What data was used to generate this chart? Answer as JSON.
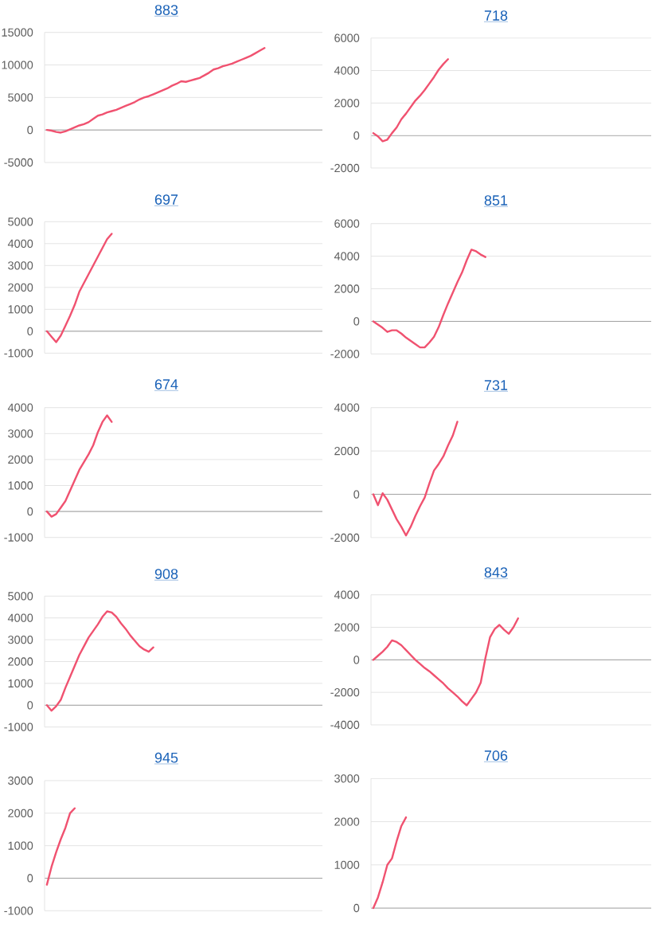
{
  "chart_data": [
    {
      "type": "line",
      "title": "883",
      "categories": [
        null,
        null,
        null,
        null,
        null,
        null,
        null,
        null,
        null,
        null,
        null,
        null,
        null,
        null,
        null,
        null,
        null,
        null,
        null,
        null,
        null,
        null,
        null,
        null,
        null,
        null,
        null,
        null,
        null,
        null,
        null,
        null,
        null,
        null,
        null,
        null,
        null,
        null,
        null,
        null,
        null,
        null,
        null,
        null,
        null,
        null,
        null,
        null,
        null,
        null,
        null,
        null,
        null,
        null,
        null,
        null,
        null,
        null,
        null,
        null
      ],
      "values": [
        0,
        -100,
        -300,
        -400,
        -200,
        100,
        400,
        700,
        900,
        1200,
        1700,
        2200,
        2400,
        2700,
        2900,
        3100,
        3400,
        3700,
        4000,
        4300,
        4700,
        5000,
        5200,
        5500,
        5800,
        6100,
        6400,
        6800,
        7100,
        7500,
        7400,
        7600,
        7800,
        8000,
        8400,
        8800,
        9300,
        9500,
        9800,
        10000,
        10200,
        10500,
        10800,
        11100,
        11400,
        11800,
        12200,
        12600,
        null,
        null,
        null,
        null,
        null,
        null,
        null,
        null,
        null,
        null,
        null,
        null
      ],
      "color": "#f05270",
      "ylim": [
        -5000,
        15000
      ],
      "yticks": [
        -5000,
        0,
        5000,
        10000,
        15000
      ],
      "grid": "y",
      "tick_labels": "y"
    },
    {
      "type": "line",
      "title": "718",
      "categories": [
        null,
        null,
        null,
        null,
        null,
        null,
        null,
        null,
        null,
        null,
        null,
        null,
        null,
        null,
        null,
        null,
        null,
        null,
        null,
        null,
        null,
        null,
        null,
        null,
        null,
        null,
        null,
        null,
        null,
        null,
        null,
        null,
        null,
        null,
        null,
        null,
        null,
        null,
        null,
        null,
        null,
        null,
        null,
        null,
        null,
        null,
        null,
        null,
        null,
        null,
        null,
        null,
        null,
        null,
        null,
        null,
        null,
        null,
        null,
        null
      ],
      "values": [
        150,
        -50,
        -350,
        -250,
        150,
        500,
        1000,
        1350,
        1750,
        2150,
        2450,
        2800,
        3200,
        3600,
        4050,
        4400,
        4700,
        null,
        null,
        null,
        null,
        null,
        null,
        null,
        null,
        null,
        null,
        null,
        null,
        null,
        null,
        null,
        null,
        null,
        null,
        null,
        null,
        null,
        null,
        null,
        null,
        null,
        null,
        null,
        null,
        null,
        null,
        null,
        null,
        null,
        null,
        null,
        null,
        null,
        null,
        null,
        null,
        null,
        null,
        null
      ],
      "color": "#f05270",
      "ylim": [
        -2000,
        6000
      ],
      "yticks": [
        -2000,
        0,
        2000,
        4000,
        6000
      ],
      "grid": "y",
      "tick_labels": "y"
    },
    {
      "type": "line",
      "title": "697",
      "categories": [
        null,
        null,
        null,
        null,
        null,
        null,
        null,
        null,
        null,
        null,
        null,
        null,
        null,
        null,
        null,
        null,
        null,
        null,
        null,
        null,
        null,
        null,
        null,
        null,
        null,
        null,
        null,
        null,
        null,
        null,
        null,
        null,
        null,
        null,
        null,
        null,
        null,
        null,
        null,
        null,
        null,
        null,
        null,
        null,
        null,
        null,
        null,
        null,
        null,
        null,
        null,
        null,
        null,
        null,
        null,
        null,
        null,
        null,
        null,
        null
      ],
      "values": [
        0,
        -250,
        -500,
        -200,
        250,
        700,
        1200,
        1800,
        2200,
        2600,
        3000,
        3400,
        3800,
        4200,
        4450,
        null,
        null,
        null,
        null,
        null,
        null,
        null,
        null,
        null,
        null,
        null,
        null,
        null,
        null,
        null,
        null,
        null,
        null,
        null,
        null,
        null,
        null,
        null,
        null,
        null,
        null,
        null,
        null,
        null,
        null,
        null,
        null,
        null,
        null,
        null,
        null,
        null,
        null,
        null,
        null,
        null,
        null,
        null,
        null,
        null
      ],
      "color": "#f05270",
      "ylim": [
        -1000,
        5000
      ],
      "yticks": [
        -1000,
        0,
        1000,
        2000,
        3000,
        4000,
        5000
      ],
      "grid": "y",
      "tick_labels": "y"
    },
    {
      "type": "line",
      "title": "851",
      "categories": [
        null,
        null,
        null,
        null,
        null,
        null,
        null,
        null,
        null,
        null,
        null,
        null,
        null,
        null,
        null,
        null,
        null,
        null,
        null,
        null,
        null,
        null,
        null,
        null,
        null,
        null,
        null,
        null,
        null,
        null,
        null,
        null,
        null,
        null,
        null,
        null,
        null,
        null,
        null,
        null,
        null,
        null,
        null,
        null,
        null,
        null,
        null,
        null,
        null,
        null,
        null,
        null,
        null,
        null,
        null,
        null,
        null,
        null,
        null,
        null
      ],
      "values": [
        0,
        -200,
        -400,
        -650,
        -550,
        -550,
        -750,
        -1000,
        -1200,
        -1400,
        -1600,
        -1600,
        -1300,
        -950,
        -350,
        400,
        1100,
        1750,
        2400,
        3000,
        3750,
        4400,
        4300,
        4100,
        3950,
        null,
        null,
        null,
        null,
        null,
        null,
        null,
        null,
        null,
        null,
        null,
        null,
        null,
        null,
        null,
        null,
        null,
        null,
        null,
        null,
        null,
        null,
        null,
        null,
        null,
        null,
        null,
        null,
        null,
        null,
        null,
        null,
        null,
        null,
        null
      ],
      "color": "#f05270",
      "ylim": [
        -2000,
        6000
      ],
      "yticks": [
        -2000,
        0,
        2000,
        4000,
        6000
      ],
      "grid": "y",
      "tick_labels": "y"
    },
    {
      "type": "line",
      "title": "674",
      "categories": [
        null,
        null,
        null,
        null,
        null,
        null,
        null,
        null,
        null,
        null,
        null,
        null,
        null,
        null,
        null,
        null,
        null,
        null,
        null,
        null,
        null,
        null,
        null,
        null,
        null,
        null,
        null,
        null,
        null,
        null,
        null,
        null,
        null,
        null,
        null,
        null,
        null,
        null,
        null,
        null,
        null,
        null,
        null,
        null,
        null,
        null,
        null,
        null,
        null,
        null,
        null,
        null,
        null,
        null,
        null,
        null,
        null,
        null,
        null,
        null
      ],
      "values": [
        0,
        -200,
        -100,
        150,
        400,
        800,
        1200,
        1600,
        1900,
        2200,
        2550,
        3050,
        3450,
        3700,
        3450,
        null,
        null,
        null,
        null,
        null,
        null,
        null,
        null,
        null,
        null,
        null,
        null,
        null,
        null,
        null,
        null,
        null,
        null,
        null,
        null,
        null,
        null,
        null,
        null,
        null,
        null,
        null,
        null,
        null,
        null,
        null,
        null,
        null,
        null,
        null,
        null,
        null,
        null,
        null,
        null,
        null,
        null,
        null,
        null,
        null
      ],
      "color": "#f05270",
      "ylim": [
        -1000,
        4000
      ],
      "yticks": [
        -1000,
        0,
        1000,
        2000,
        3000,
        4000
      ],
      "grid": "y",
      "tick_labels": "y"
    },
    {
      "type": "line",
      "title": "731",
      "categories": [
        null,
        null,
        null,
        null,
        null,
        null,
        null,
        null,
        null,
        null,
        null,
        null,
        null,
        null,
        null,
        null,
        null,
        null,
        null,
        null,
        null,
        null,
        null,
        null,
        null,
        null,
        null,
        null,
        null,
        null,
        null,
        null,
        null,
        null,
        null,
        null,
        null,
        null,
        null,
        null,
        null,
        null,
        null,
        null,
        null,
        null,
        null,
        null,
        null,
        null,
        null,
        null,
        null,
        null,
        null,
        null,
        null,
        null,
        null,
        null
      ],
      "values": [
        0,
        -500,
        50,
        -250,
        -700,
        -1150,
        -1500,
        -1900,
        -1500,
        -1000,
        -550,
        -150,
        500,
        1100,
        1400,
        1750,
        2250,
        2700,
        3350,
        null,
        null,
        null,
        null,
        null,
        null,
        null,
        null,
        null,
        null,
        null,
        null,
        null,
        null,
        null,
        null,
        null,
        null,
        null,
        null,
        null,
        null,
        null,
        null,
        null,
        null,
        null,
        null,
        null,
        null,
        null,
        null,
        null,
        null,
        null,
        null,
        null,
        null,
        null,
        null,
        null
      ],
      "color": "#f05270",
      "ylim": [
        -2000,
        4000
      ],
      "yticks": [
        -2000,
        0,
        2000,
        4000
      ],
      "grid": "y",
      "tick_labels": "y"
    },
    {
      "type": "line",
      "title": "908",
      "categories": [
        null,
        null,
        null,
        null,
        null,
        null,
        null,
        null,
        null,
        null,
        null,
        null,
        null,
        null,
        null,
        null,
        null,
        null,
        null,
        null,
        null,
        null,
        null,
        null,
        null,
        null,
        null,
        null,
        null,
        null,
        null,
        null,
        null,
        null,
        null,
        null,
        null,
        null,
        null,
        null,
        null,
        null,
        null,
        null,
        null,
        null,
        null,
        null,
        null,
        null,
        null,
        null,
        null,
        null,
        null,
        null,
        null,
        null,
        null,
        null
      ],
      "values": [
        0,
        -250,
        -50,
        250,
        800,
        1300,
        1800,
        2300,
        2700,
        3100,
        3400,
        3700,
        4050,
        4300,
        4250,
        4050,
        3750,
        3500,
        3200,
        2950,
        2700,
        2550,
        2450,
        2650,
        null,
        null,
        null,
        null,
        null,
        null,
        null,
        null,
        null,
        null,
        null,
        null,
        null,
        null,
        null,
        null,
        null,
        null,
        null,
        null,
        null,
        null,
        null,
        null,
        null,
        null,
        null,
        null,
        null,
        null,
        null,
        null,
        null,
        null,
        null,
        null
      ],
      "color": "#f05270",
      "ylim": [
        -1000,
        5000
      ],
      "yticks": [
        -1000,
        0,
        1000,
        2000,
        3000,
        4000,
        5000
      ],
      "grid": "y",
      "tick_labels": "y"
    },
    {
      "type": "line",
      "title": "843",
      "categories": [
        null,
        null,
        null,
        null,
        null,
        null,
        null,
        null,
        null,
        null,
        null,
        null,
        null,
        null,
        null,
        null,
        null,
        null,
        null,
        null,
        null,
        null,
        null,
        null,
        null,
        null,
        null,
        null,
        null,
        null,
        null,
        null,
        null,
        null,
        null,
        null,
        null,
        null,
        null,
        null,
        null,
        null,
        null,
        null,
        null,
        null,
        null,
        null,
        null,
        null,
        null,
        null,
        null,
        null,
        null,
        null,
        null,
        null,
        null,
        null
      ],
      "values": [
        0,
        250,
        500,
        800,
        1200,
        1100,
        900,
        600,
        300,
        0,
        -250,
        -500,
        -700,
        -950,
        -1200,
        -1450,
        -1750,
        -2000,
        -2250,
        -2550,
        -2800,
        -2400,
        -2000,
        -1400,
        100,
        1400,
        1900,
        2150,
        1850,
        1600,
        2000,
        2550,
        null,
        null,
        null,
        null,
        null,
        null,
        null,
        null,
        null,
        null,
        null,
        null,
        null,
        null,
        null,
        null,
        null,
        null,
        null,
        null,
        null,
        null,
        null,
        null,
        null,
        null,
        null,
        null
      ],
      "color": "#f05270",
      "ylim": [
        -4000,
        4000
      ],
      "yticks": [
        -4000,
        -2000,
        0,
        2000,
        4000
      ],
      "grid": "y",
      "tick_labels": "y"
    },
    {
      "type": "line",
      "title": "945",
      "categories": [
        null,
        null,
        null,
        null,
        null,
        null,
        null,
        null,
        null,
        null,
        null,
        null,
        null,
        null,
        null,
        null,
        null,
        null,
        null,
        null,
        null,
        null,
        null,
        null,
        null,
        null,
        null,
        null,
        null,
        null,
        null,
        null,
        null,
        null,
        null,
        null,
        null,
        null,
        null,
        null,
        null,
        null,
        null,
        null,
        null,
        null,
        null,
        null,
        null,
        null,
        null,
        null,
        null,
        null,
        null,
        null,
        null,
        null,
        null,
        null
      ],
      "values": [
        -200,
        350,
        800,
        1200,
        1550,
        2000,
        2150,
        null,
        null,
        null,
        null,
        null,
        null,
        null,
        null,
        null,
        null,
        null,
        null,
        null,
        null,
        null,
        null,
        null,
        null,
        null,
        null,
        null,
        null,
        null,
        null,
        null,
        null,
        null,
        null,
        null,
        null,
        null,
        null,
        null,
        null,
        null,
        null,
        null,
        null,
        null,
        null,
        null,
        null,
        null,
        null,
        null,
        null,
        null,
        null,
        null,
        null,
        null,
        null,
        null
      ],
      "color": "#f05270",
      "ylim": [
        -1000,
        3000
      ],
      "yticks": [
        -1000,
        0,
        1000,
        2000,
        3000
      ],
      "grid": "y",
      "tick_labels": "y"
    },
    {
      "type": "line",
      "title": "706",
      "categories": [
        null,
        null,
        null,
        null,
        null,
        null,
        null,
        null,
        null,
        null,
        null,
        null,
        null,
        null,
        null,
        null,
        null,
        null,
        null,
        null,
        null,
        null,
        null,
        null,
        null,
        null,
        null,
        null,
        null,
        null,
        null,
        null,
        null,
        null,
        null,
        null,
        null,
        null,
        null,
        null,
        null,
        null,
        null,
        null,
        null,
        null,
        null,
        null,
        null,
        null,
        null,
        null,
        null,
        null,
        null,
        null,
        null,
        null,
        null,
        null
      ],
      "values": [
        0,
        250,
        600,
        1000,
        1150,
        1550,
        1900,
        2100,
        null,
        null,
        null,
        null,
        null,
        null,
        null,
        null,
        null,
        null,
        null,
        null,
        null,
        null,
        null,
        null,
        null,
        null,
        null,
        null,
        null,
        null,
        null,
        null,
        null,
        null,
        null,
        null,
        null,
        null,
        null,
        null,
        null,
        null,
        null,
        null,
        null,
        null,
        null,
        null,
        null,
        null,
        null,
        null,
        null,
        null,
        null,
        null,
        null,
        null,
        null,
        null
      ],
      "color": "#f05270",
      "ylim": [
        0,
        3000
      ],
      "yticks": [
        0,
        1000,
        2000,
        3000
      ],
      "grid": "y",
      "tick_labels": "y"
    }
  ]
}
